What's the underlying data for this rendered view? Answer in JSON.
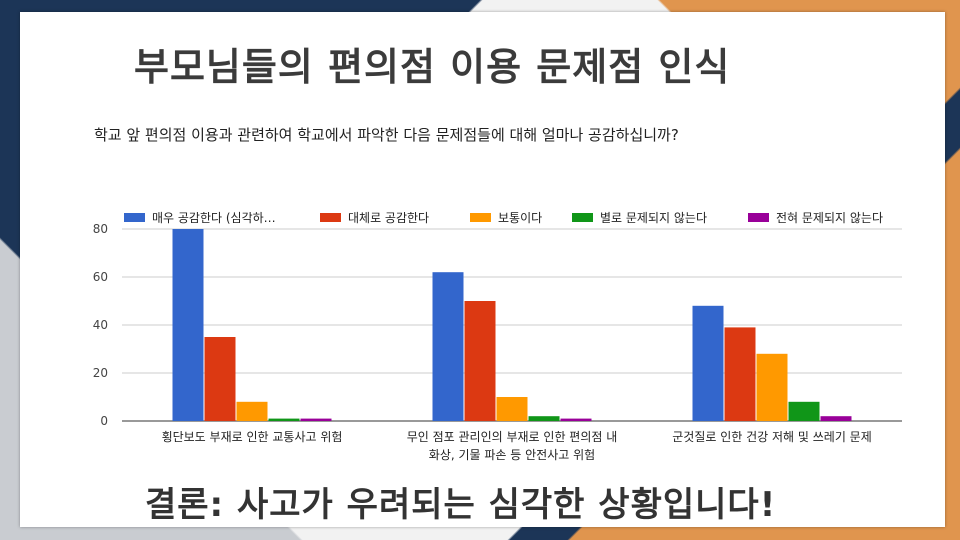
{
  "slide": {
    "title": "부모님들의 편의점 이용 문제점 인식",
    "question": "학교 앞 편의점 이용과 관련하여 학교에서 파악한 다음 문제점들에 대해 얼마나 공감하십니까?",
    "conclusion": "결론: 사고가 우려되는 심각한 상황입니다!"
  },
  "colors": {
    "navy": "#1c3557",
    "orange": "#e0954e"
  },
  "chart_data": {
    "type": "bar",
    "title": "",
    "xlabel": "",
    "ylabel": "",
    "ylim": [
      0,
      80
    ],
    "yticks": [
      0,
      20,
      40,
      60,
      80
    ],
    "grid": true,
    "legend_position": "top",
    "categories": [
      [
        "횡단보도 부재로 인한 교통사고 위험"
      ],
      [
        "무인 점포 관리인의 부재로 인한 편의점 내",
        "화상, 기물 파손 등 안전사고 위험"
      ],
      [
        "군것질로 인한 건강 저해 및 쓰레기 문제"
      ]
    ],
    "series": [
      {
        "name": "매우 공감한다 (심각하…",
        "color": "#3366cc",
        "values": [
          80,
          62,
          48
        ]
      },
      {
        "name": "대체로 공감한다",
        "color": "#dc3912",
        "values": [
          35,
          50,
          39
        ]
      },
      {
        "name": "보통이다",
        "color": "#ff9900",
        "values": [
          8,
          10,
          28
        ]
      },
      {
        "name": "별로 문제되지 않는다",
        "color": "#109618",
        "values": [
          1,
          2,
          8
        ]
      },
      {
        "name": "전혀 문제되지 않는다",
        "color": "#990099",
        "values": [
          1,
          1,
          2
        ]
      }
    ]
  }
}
